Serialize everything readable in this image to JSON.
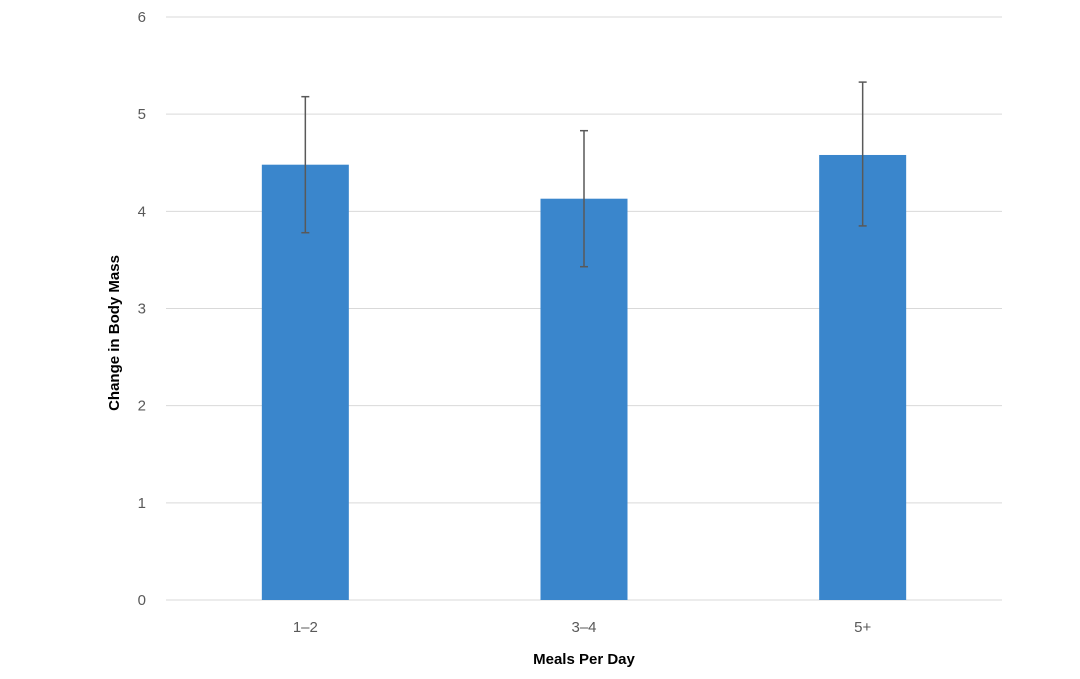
{
  "chart_data": {
    "type": "bar",
    "categories": [
      "1–2",
      "3–4",
      "5+"
    ],
    "values": [
      4.48,
      4.13,
      4.58
    ],
    "error_bars": {
      "low": [
        3.78,
        3.43,
        3.85
      ],
      "high": [
        5.18,
        4.83,
        5.33
      ]
    },
    "xlabel": "Meals Per Day",
    "ylabel": "Change in Body Mass",
    "ylim": [
      0,
      6
    ],
    "yticks": [
      "0",
      "1",
      "2",
      "3",
      "4",
      "5",
      "6"
    ],
    "grid": true,
    "legend": "none",
    "colors": {
      "bar": "#3a86cc",
      "error_bar": "#595959",
      "gridline": "#d9d9d9",
      "tick_label": "#595959"
    }
  }
}
